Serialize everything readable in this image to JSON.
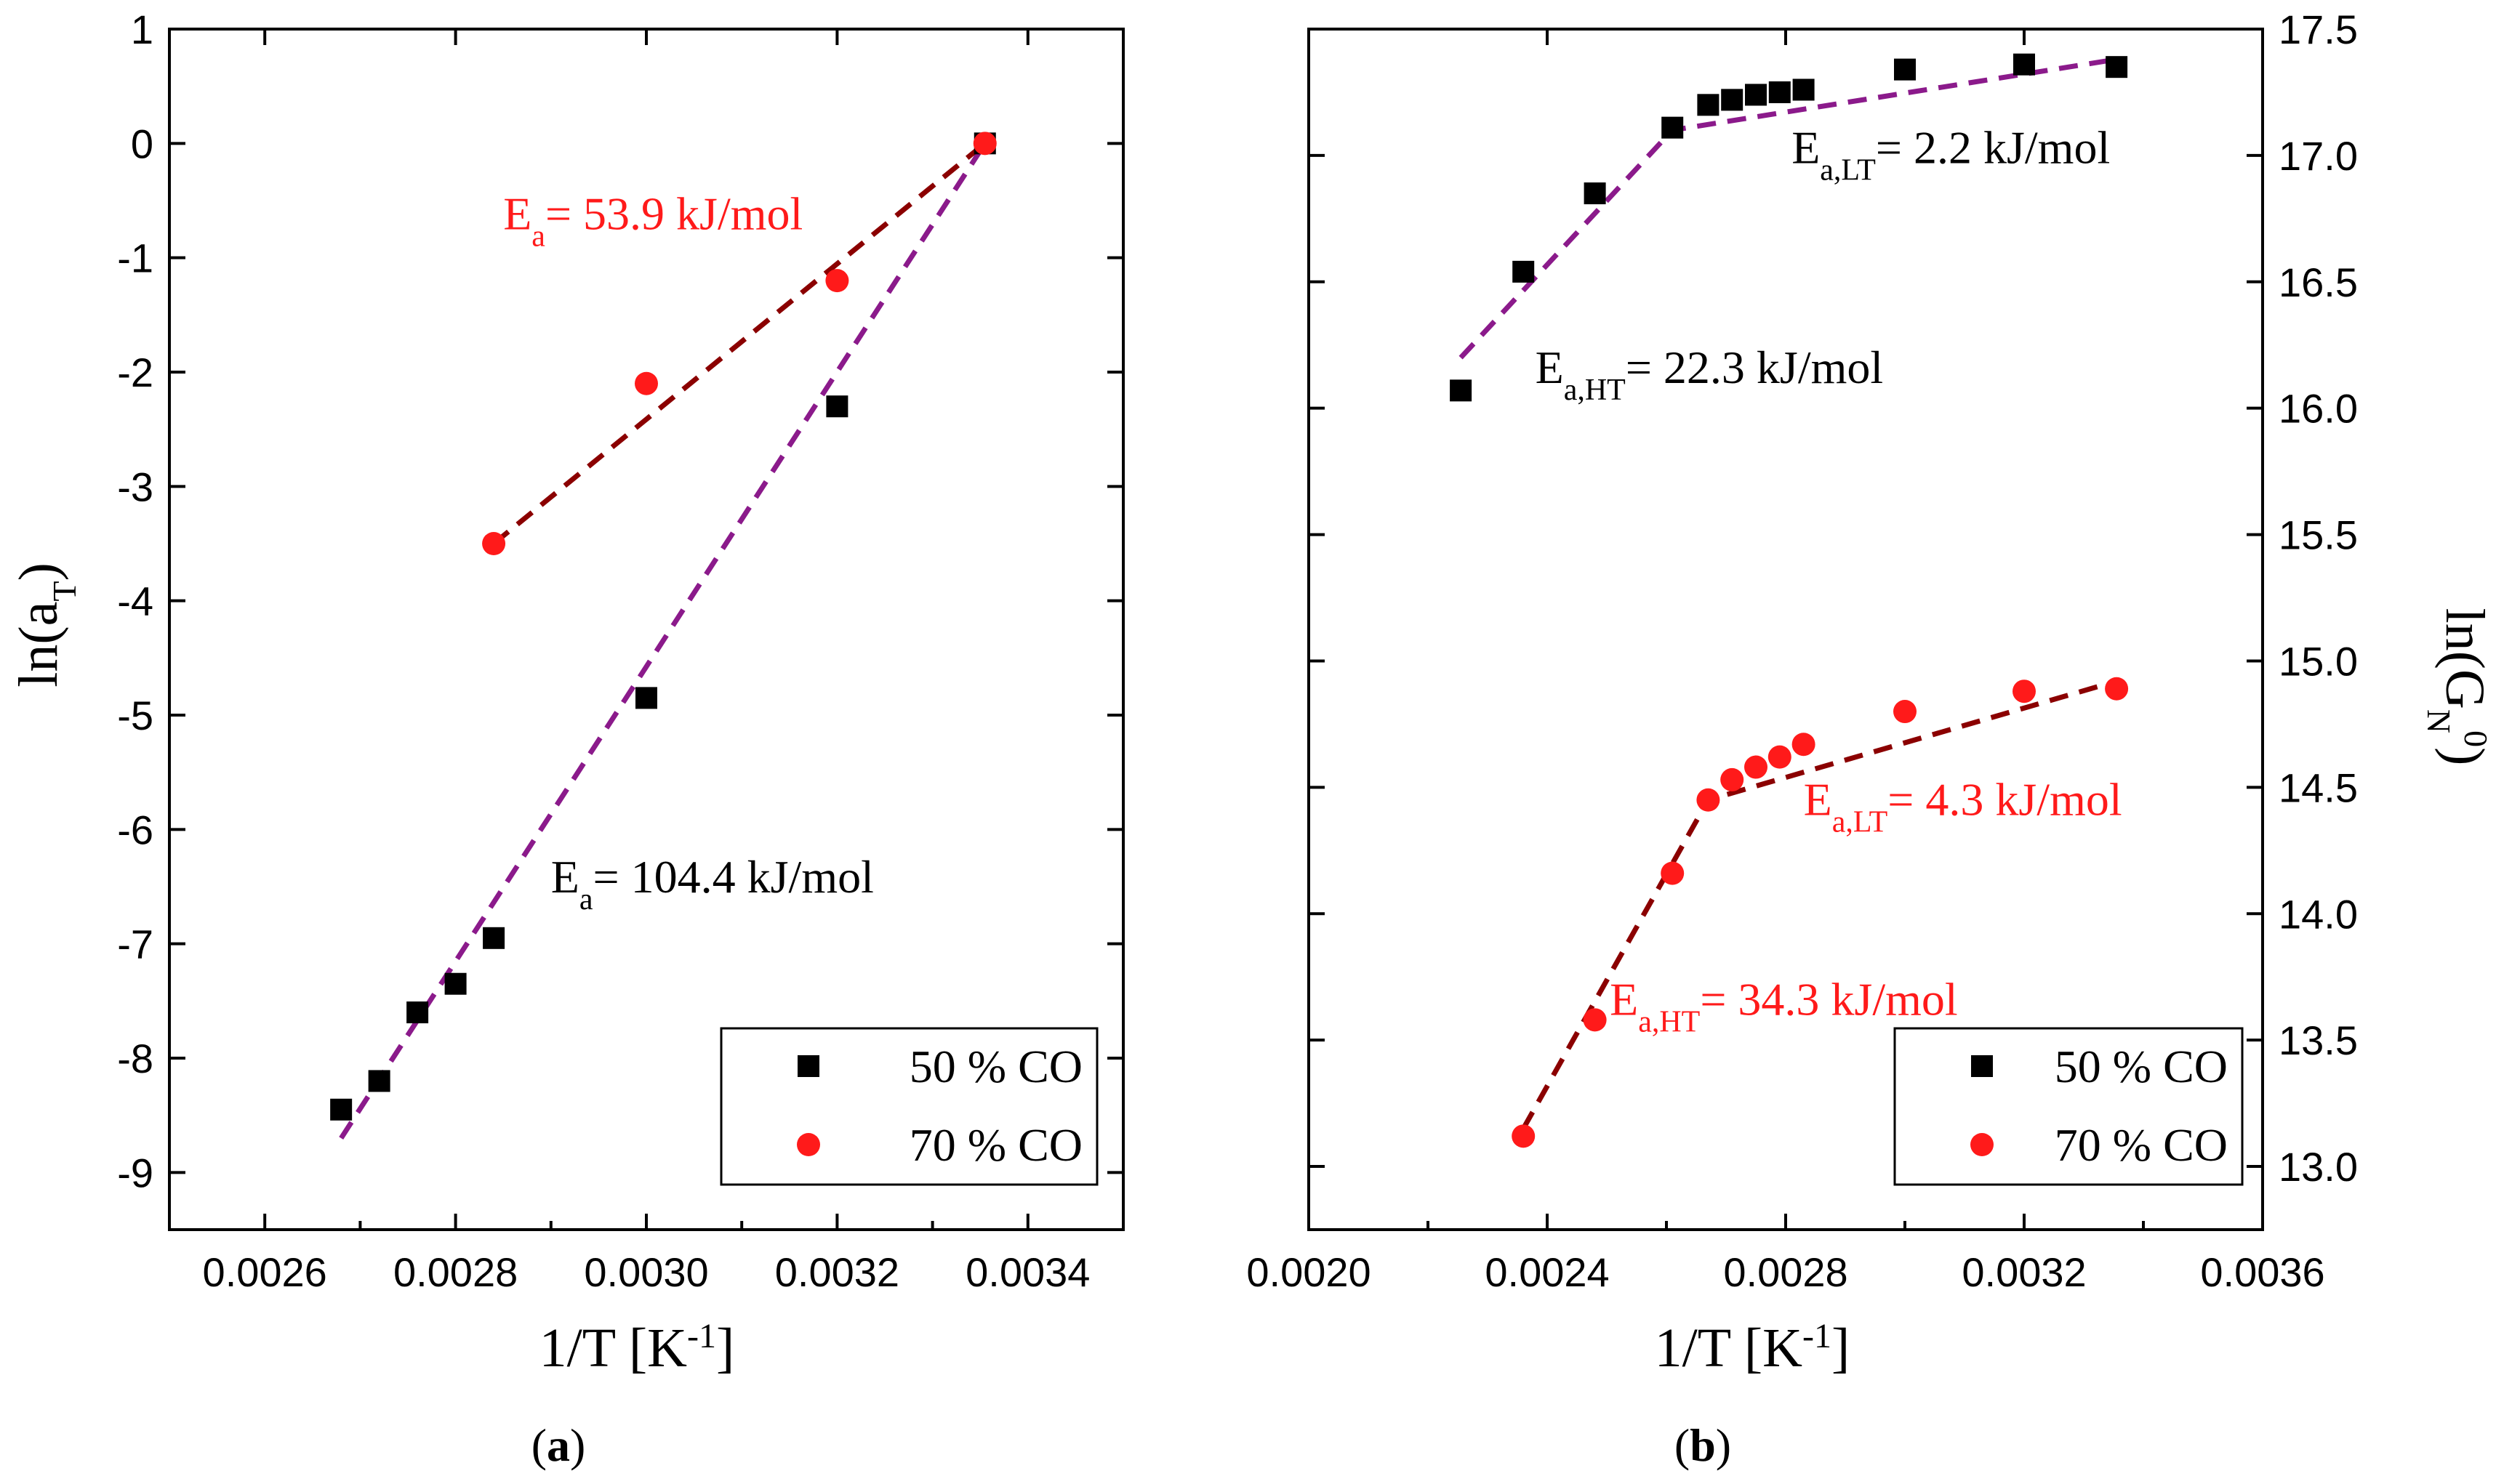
{
  "colors": {
    "black_series": "#000000",
    "red_series": "#ff1a1a",
    "purple_fit": "#8b1a8b",
    "darkred_fit": "#8b0000"
  },
  "chart_data": [
    {
      "type": "scatter",
      "panel": "(a)",
      "caption": {
        "open": "(",
        "letter": "a",
        "close": ")"
      },
      "xlabel": {
        "text": "1/T [K",
        "sup": "-1",
        "close": "]"
      },
      "ylabel": {
        "text": "ln(a",
        "sub": "T",
        "close": ")"
      },
      "xlim": [
        0.0025,
        0.0035
      ],
      "ylim": [
        -9.5,
        1.0
      ],
      "x_ticks": [
        "0.0026",
        "0.0028",
        "0.0030",
        "0.0032",
        "0.0034"
      ],
      "x_tick_values": [
        0.0026,
        0.0028,
        0.003,
        0.0032,
        0.0034
      ],
      "y_ticks": [
        "1",
        "0",
        "-1",
        "-2",
        "-3",
        "-4",
        "-5",
        "-6",
        "-7",
        "-8",
        "-9"
      ],
      "y_tick_values": [
        1,
        0,
        -1,
        -2,
        -3,
        -4,
        -5,
        -6,
        -7,
        -8,
        -9
      ],
      "series": [
        {
          "name": "50 % CO",
          "marker": "square",
          "color": "#000000",
          "x": [
            0.00268,
            0.00272,
            0.00276,
            0.0028,
            0.00284,
            0.003,
            0.0032,
            0.003355
          ],
          "y": [
            -8.45,
            -8.2,
            -7.6,
            -7.35,
            -6.95,
            -4.85,
            -2.3,
            0.0
          ]
        },
        {
          "name": "70 % CO",
          "marker": "circle",
          "color": "#ff1a1a",
          "x": [
            0.00284,
            0.003,
            0.0032,
            0.003355
          ],
          "y": [
            -3.5,
            -2.1,
            -1.2,
            0.0
          ]
        }
      ],
      "fits": [
        {
          "series": "50 % CO",
          "color": "#8b1a8b",
          "x": [
            0.00268,
            0.003355
          ],
          "y": [
            -8.7,
            0.0
          ]
        },
        {
          "series": "70 % CO",
          "color": "#8b0000",
          "x": [
            0.00284,
            0.003355
          ],
          "y": [
            -3.5,
            0.0
          ]
        }
      ],
      "annotations": [
        {
          "base": "E",
          "sub": "a",
          "text": "= 53.9 kJ/mol",
          "color": "#ff1a1a",
          "x": 0.00285,
          "y": -0.75
        },
        {
          "base": "E",
          "sub": "a",
          "text": "= 104.4 kJ/mol",
          "color": "#000000",
          "x": 0.0029,
          "y": -6.55
        }
      ],
      "legend": {
        "position": "bottom-right",
        "entries": [
          "50 % CO",
          "70 % CO"
        ]
      }
    },
    {
      "type": "scatter",
      "panel": "(b)",
      "caption": {
        "open": "(",
        "letter": "b",
        "close": ")"
      },
      "xlabel": {
        "text": "1/T [K",
        "sup": "-1",
        "close": "]"
      },
      "ylabel": {
        "text": "ln(G",
        "sub": "N",
        "sup": "0",
        "close": ")"
      },
      "xlim": [
        0.002,
        0.0036
      ],
      "ylim": [
        12.75,
        17.5
      ],
      "x_ticks": [
        "0.0020",
        "0.0024",
        "0.0028",
        "0.0032",
        "0.0036"
      ],
      "x_tick_values": [
        0.002,
        0.0024,
        0.0028,
        0.0032,
        0.0036
      ],
      "y_ticks": [
        "17.5",
        "17.0",
        "16.5",
        "16.0",
        "15.5",
        "15.0",
        "14.5",
        "14.0",
        "13.5",
        "13.0"
      ],
      "y_tick_values": [
        17.5,
        17.0,
        16.5,
        16.0,
        15.5,
        15.0,
        14.5,
        14.0,
        13.5,
        13.0
      ],
      "series": [
        {
          "name": "50 % CO",
          "marker": "square",
          "color": "#000000",
          "x": [
            0.002255,
            0.00236,
            0.00248,
            0.00261,
            0.00267,
            0.00271,
            0.00275,
            0.00279,
            0.00283,
            0.003,
            0.0032,
            0.003355
          ],
          "y": [
            16.07,
            16.54,
            16.85,
            17.11,
            17.2,
            17.22,
            17.24,
            17.25,
            17.26,
            17.34,
            17.36,
            17.35
          ]
        },
        {
          "name": "70 % CO",
          "marker": "circle",
          "color": "#ff1a1a",
          "x": [
            0.00236,
            0.00248,
            0.00261,
            0.00267,
            0.00271,
            0.00275,
            0.00279,
            0.00283,
            0.003,
            0.0032,
            0.003355
          ],
          "y": [
            13.12,
            13.58,
            14.16,
            14.45,
            14.53,
            14.58,
            14.62,
            14.67,
            14.8,
            14.88,
            14.89
          ]
        }
      ],
      "fits": [
        {
          "series": "50 % CO",
          "color": "#8b1a8b",
          "x": [
            0.002255,
            0.00261,
            0.003355
          ],
          "y": [
            16.2,
            17.1,
            17.38
          ]
        },
        {
          "series": "70 % CO",
          "color": "#8b0000",
          "x": [
            0.00236,
            0.00267,
            0.003355
          ],
          "y": [
            13.15,
            14.45,
            14.92
          ]
        }
      ],
      "annotations": [
        {
          "base": "E",
          "sub": "a,LT",
          "text": "= 2.2 kJ/mol",
          "color": "#000000",
          "x": 0.00281,
          "y": 16.97
        },
        {
          "base": "E",
          "sub": "a,HT",
          "text": "= 22.3 kJ/mol",
          "color": "#000000",
          "x": 0.00238,
          "y": 16.1
        },
        {
          "base": "E",
          "sub": "a,LT",
          "text": "= 4.3 kJ/mol",
          "color": "#ff1a1a",
          "x": 0.00283,
          "y": 14.39
        },
        {
          "base": "E",
          "sub": "a,HT",
          "text": "= 34.3 kJ/mol",
          "color": "#ff1a1a",
          "x": 0.002505,
          "y": 13.6
        }
      ],
      "legend": {
        "position": "bottom-right",
        "entries": [
          "50 % CO",
          "70 % CO"
        ]
      }
    }
  ]
}
